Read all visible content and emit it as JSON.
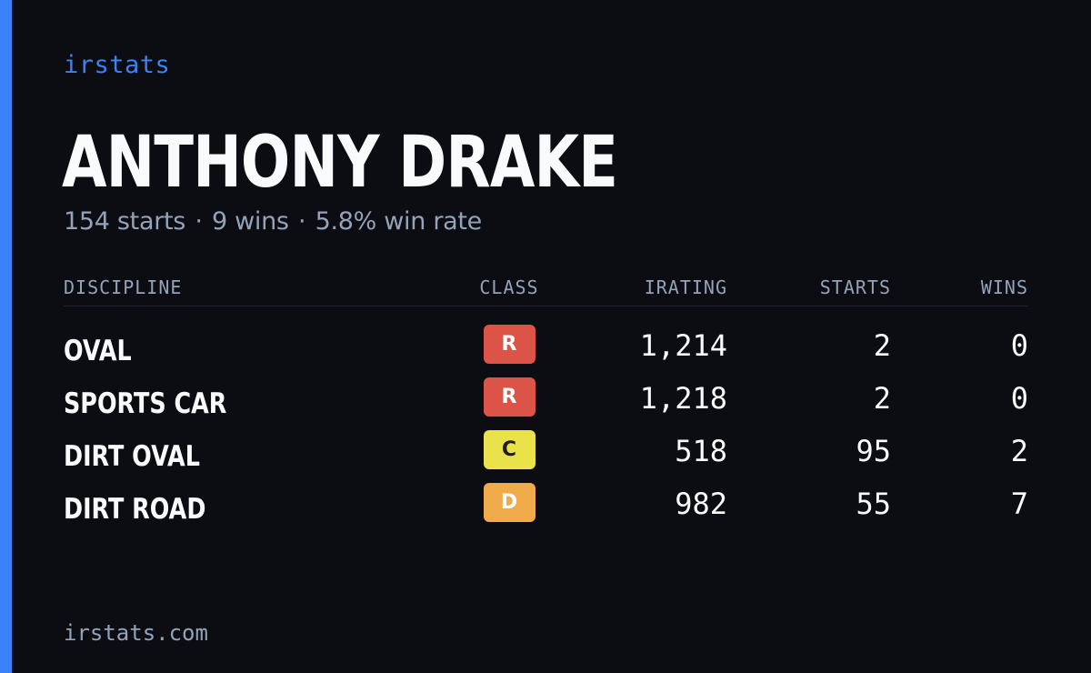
{
  "brand": {
    "name": "irstats"
  },
  "player": {
    "name": "ANTHONY DRAKE"
  },
  "summary": {
    "starts_text": "154 starts",
    "wins_text": "9 wins",
    "win_rate_text": "5.8% win rate",
    "separator": "·"
  },
  "table": {
    "headers": {
      "discipline": "DISCIPLINE",
      "class": "CLASS",
      "irating": "IRATING",
      "starts": "STARTS",
      "wins": "WINS"
    },
    "rows": [
      {
        "discipline": "OVAL",
        "class": "R",
        "class_color": "#dc5347",
        "class_text_color": "#ffffff",
        "irating": "1,214",
        "starts": "2",
        "wins": "0"
      },
      {
        "discipline": "SPORTS CAR",
        "class": "R",
        "class_color": "#dc5347",
        "class_text_color": "#ffffff",
        "irating": "1,218",
        "starts": "2",
        "wins": "0"
      },
      {
        "discipline": "DIRT OVAL",
        "class": "C",
        "class_color": "#eae24a",
        "class_text_color": "#1e1e1e",
        "irating": "518",
        "starts": "95",
        "wins": "2"
      },
      {
        "discipline": "DIRT ROAD",
        "class": "D",
        "class_color": "#efab4a",
        "class_text_color": "#ffffff",
        "irating": "982",
        "starts": "55",
        "wins": "7"
      }
    ]
  },
  "footer": {
    "url": "irstats.com"
  },
  "colors": {
    "background": "#0b0d13",
    "accent": "#3b82f6",
    "muted_text": "#94a3b8",
    "primary_text": "#f8fafc"
  }
}
